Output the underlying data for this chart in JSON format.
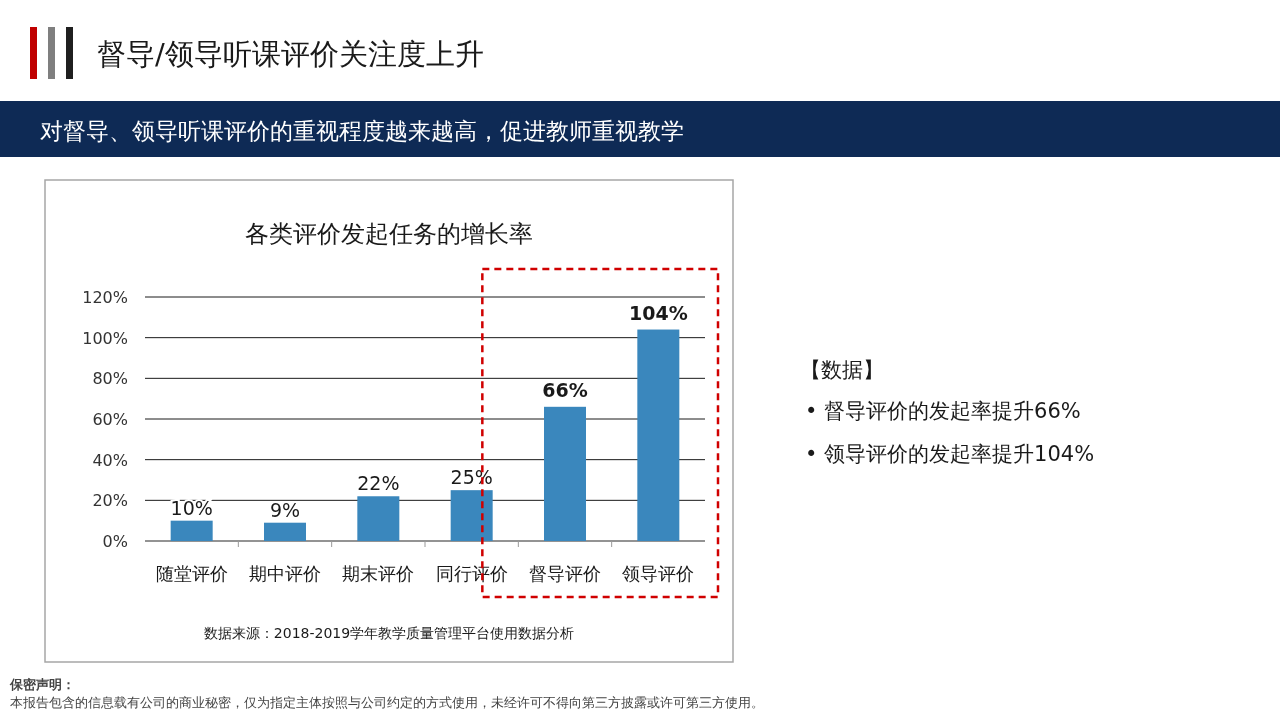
{
  "chart_data": {
    "type": "bar",
    "title": "各类评价发起任务的增长率",
    "subtitle": "督导/领导听课评价关注度上升",
    "annotations": [
      "对督导、领导听课评价的重视程度越来越高，促进教师重视教学",
      "数据来源：2018-2019学年教学质量管理平台使用数据分析",
      "【数据】",
      "•  督导评价的发起率提升66%",
      "•  领导评价的发起率提升104%",
      "保密声明：",
      "本报告包含的信息载有公司的商业秘密，仅为指定主体按照与公司约定的方式使用，未经许可不得向第三方披露或许可第三方使用。"
    ],
    "categories": [
      "随堂评价",
      "期中评价",
      "期末评价",
      "同行评价",
      "督导评价",
      "领导评价"
    ],
    "values": [
      10,
      9,
      22,
      25,
      66,
      104
    ],
    "value_labels": [
      "10%",
      "9%",
      "22%",
      "25%",
      "66%",
      "104%"
    ],
    "color": "#3a87bd",
    "ylim": [
      0,
      120
    ],
    "yticks": [
      {
        "value": 0,
        "label": "0%"
      },
      {
        "value": 20,
        "label": "20%"
      },
      {
        "value": 40,
        "label": "40%"
      },
      {
        "value": 60,
        "label": "60%"
      },
      {
        "value": 80,
        "label": "80%"
      },
      {
        "value": 100,
        "label": "100%"
      },
      {
        "value": 120,
        "label": "120%"
      }
    ],
    "grid": "y"
  }
}
